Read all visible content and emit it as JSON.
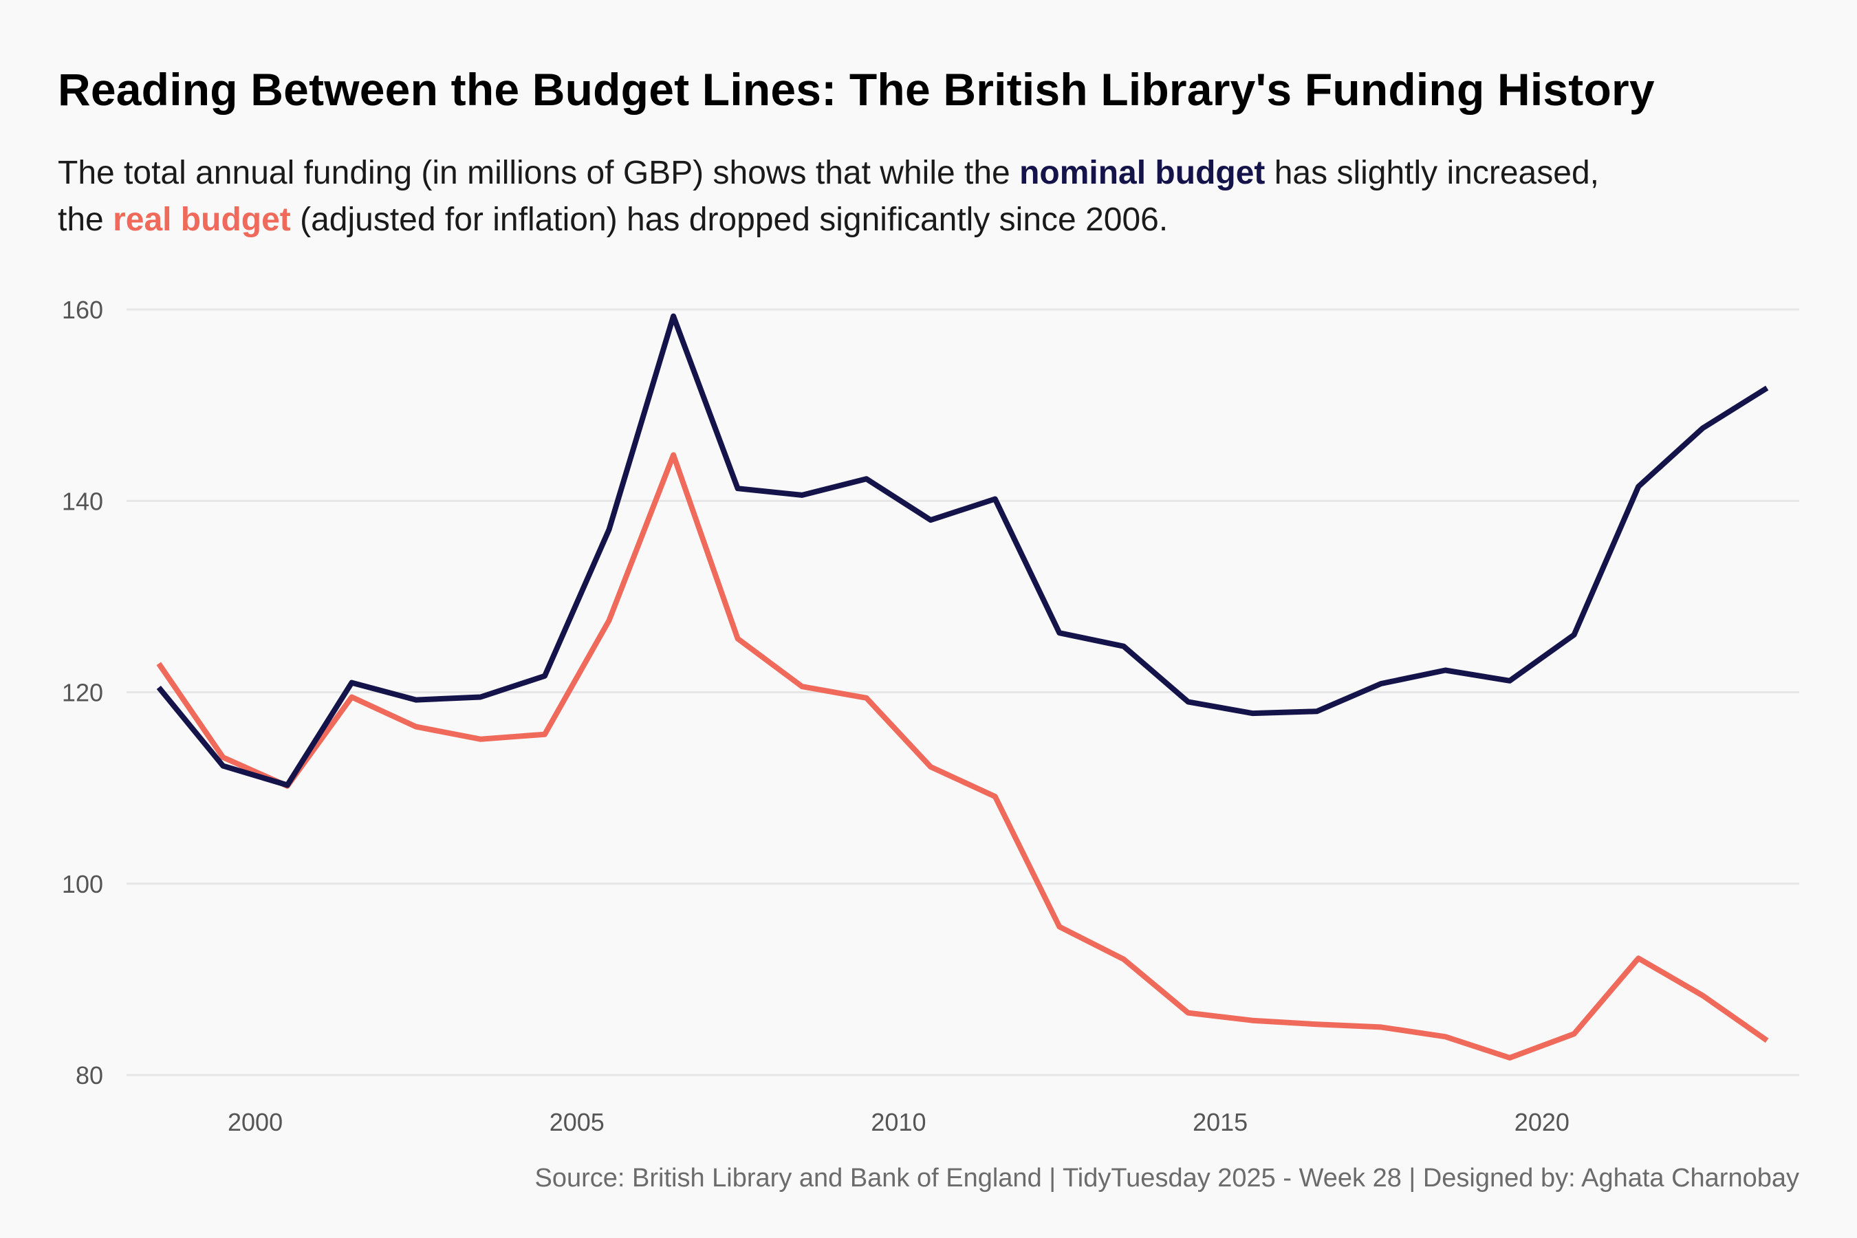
{
  "title": "Reading Between the Budget Lines: The British Library's Funding History",
  "subtitle": {
    "line1_pre": "The total annual funding (in millions of GBP) shows that while the ",
    "nominal_label": "nominal budget",
    "line1_post": " has slightly increased,",
    "line2_pre": "the ",
    "real_label": "real budget",
    "line2_post": " (adjusted for inflation) has dropped significantly since 2006."
  },
  "caption": "Source: British Library and Bank of England | TidyTuesday 2025 - Week 28 | Designed by: Aghata Charnobay",
  "colors": {
    "nominal": "#14134a",
    "real": "#ef6a5a",
    "grid": "#e6e6e6",
    "tick_text": "#555555"
  },
  "chart_data": {
    "type": "line",
    "x_ticks": [
      2000,
      2005,
      2010,
      2015,
      2020
    ],
    "y_ticks": [
      80,
      100,
      120,
      140,
      160
    ],
    "xlim": [
      1998,
      2024
    ],
    "ylim": [
      80,
      160
    ],
    "grid": "horizontal",
    "x": [
      1998.5,
      1999.5,
      2000.5,
      2001.5,
      2002.5,
      2003.5,
      2004.5,
      2005.5,
      2006.5,
      2007.5,
      2008.5,
      2009.5,
      2010.5,
      2011.5,
      2012.5,
      2013.5,
      2014.5,
      2015.5,
      2016.5,
      2017.5,
      2018.5,
      2019.5,
      2020.5,
      2021.5,
      2022.5,
      2023.5
    ],
    "series": [
      {
        "name": "nominal budget",
        "color": "#14134a",
        "values": [
          120.5,
          112.3,
          110.3,
          121.0,
          119.2,
          119.5,
          121.7,
          137.0,
          159.3,
          141.3,
          140.6,
          142.3,
          138.0,
          140.2,
          126.2,
          124.8,
          119.0,
          117.8,
          118.0,
          120.9,
          122.3,
          121.2,
          126.0,
          141.5,
          147.6,
          151.8
        ]
      },
      {
        "name": "real budget",
        "color": "#ef6a5a",
        "values": [
          123.0,
          113.2,
          110.2,
          119.5,
          116.4,
          115.1,
          115.6,
          127.5,
          144.8,
          125.6,
          120.6,
          119.4,
          112.2,
          109.1,
          95.5,
          92.1,
          86.5,
          85.7,
          85.3,
          85.0,
          84.0,
          81.8,
          84.3,
          92.2,
          88.3,
          83.6
        ]
      }
    ]
  }
}
